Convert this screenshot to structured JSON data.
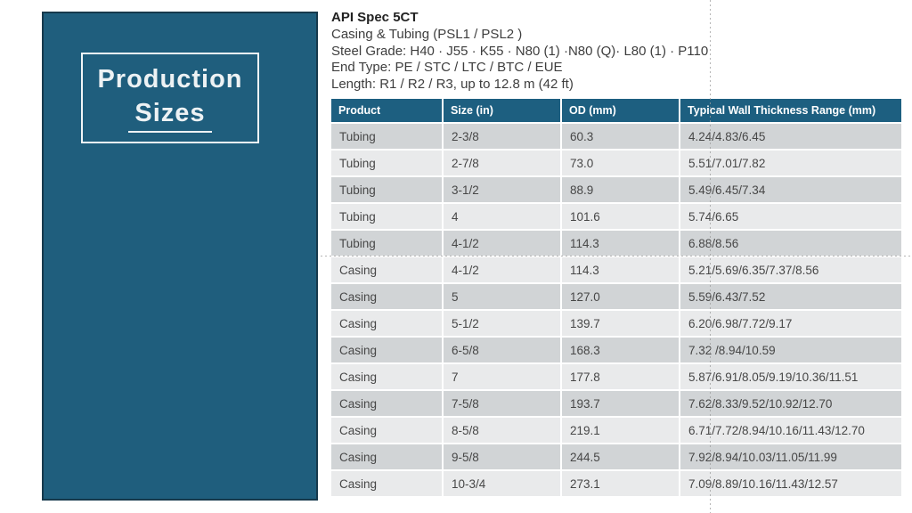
{
  "panel": {
    "line1": "Production",
    "line2": "Sizes"
  },
  "spec": {
    "title": "API Spec 5CT",
    "lines": [
      "Casing & Tubing (PSL1 / PSL2 )",
      "Steel Grade: H40 · J55 · K55 · N80 (1) ·N80 (Q)· L80 (1) · P110",
      "End Type: PE / STC / LTC / BTC / EUE",
      "Length: R1 / R2 / R3, up to 12.8 m (42 ft)"
    ]
  },
  "table": {
    "columns": [
      "Product",
      "Size (in)",
      "OD (mm)",
      "Typical Wall Thickness Range (mm)"
    ],
    "rows": [
      [
        "Tubing",
        "2-3/8",
        "60.3",
        "4.24/4.83/6.45"
      ],
      [
        "Tubing",
        "2-7/8",
        "73.0",
        "5.51/7.01/7.82"
      ],
      [
        "Tubing",
        "3-1/2",
        "88.9",
        "5.49/6.45/7.34"
      ],
      [
        "Tubing",
        "4",
        "101.6",
        "5.74/6.65"
      ],
      [
        "Tubing",
        "4-1/2",
        "114.3",
        "6.88/8.56"
      ],
      [
        "Casing",
        "4-1/2",
        "114.3",
        "5.21/5.69/6.35/7.37/8.56"
      ],
      [
        "Casing",
        "5",
        "127.0",
        "5.59/6.43/7.52"
      ],
      [
        "Casing",
        "5-1/2",
        "139.7",
        "6.20/6.98/7.72/9.17"
      ],
      [
        "Casing",
        "6-5/8",
        "168.3",
        "7.32 /8.94/10.59"
      ],
      [
        "Casing",
        "7",
        "177.8",
        "5.87/6.91/8.05/9.19/10.36/11.51"
      ],
      [
        "Casing",
        "7-5/8",
        "193.7",
        "7.62/8.33/9.52/10.92/12.70"
      ],
      [
        "Casing",
        "8-5/8",
        "219.1",
        "6.71/7.72/8.94/10.16/11.43/12.70"
      ],
      [
        "Casing",
        "9-5/8",
        "244.5",
        "7.92/8.94/10.03/11.05/11.99"
      ],
      [
        "Casing",
        "10-3/4",
        "273.1",
        "7.09/8.89/10.16/11.43/12.57"
      ]
    ]
  },
  "colors": {
    "panel_teal": "#1F5E7D",
    "panel_border": "#16394C",
    "header_teal": "#1D5F80",
    "row_dark": "#D1D4D6",
    "row_light": "#E9EAEB",
    "body_text": "#474747",
    "spec_text": "#3E3E3E",
    "title_text": "#EDF2F4",
    "guide": "#9C9C9C"
  }
}
